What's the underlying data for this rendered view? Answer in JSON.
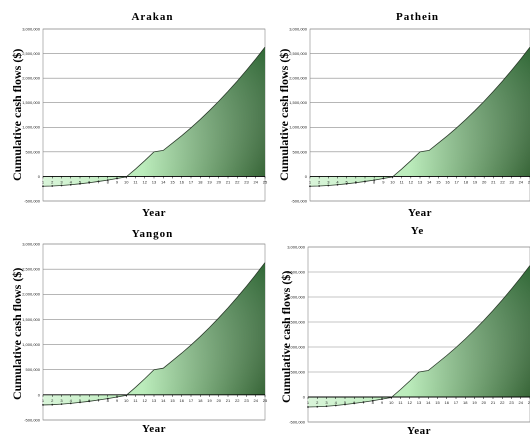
{
  "chart_data": [
    {
      "type": "area",
      "title": "Arakan",
      "xlabel": "Year",
      "ylabel": "Cumulative cash flows ($)",
      "yticks": [
        "-500,000",
        "0",
        "500,000",
        "1,000,000",
        "1,500,000",
        "2,000,000",
        "2,500,000",
        "3,000,000"
      ],
      "ylim": [
        -500000,
        3000000
      ],
      "x": [
        1,
        2,
        3,
        4,
        5,
        6,
        7,
        8,
        9,
        10,
        11,
        12,
        13,
        14,
        15,
        16,
        17,
        18,
        19,
        20,
        21,
        22,
        23,
        24,
        25
      ],
      "values": [
        -200000,
        -195000,
        -185000,
        -170000,
        -150000,
        -128000,
        -102000,
        -75000,
        -42000,
        -10000,
        150000,
        320000,
        500000,
        530000,
        680000,
        830000,
        990000,
        1160000,
        1340000,
        1530000,
        1730000,
        1940000,
        2160000,
        2390000,
        2630000
      ],
      "grid": true
    },
    {
      "type": "area",
      "title": "Pathein",
      "xlabel": "Year",
      "ylabel": "Cumulative cash flows ($)",
      "yticks": [
        "-500,000",
        "0",
        "500,000",
        "1,000,000",
        "1,500,000",
        "2,000,000",
        "2,500,000",
        "3,000,000"
      ],
      "ylim": [
        -500000,
        3000000
      ],
      "x": [
        1,
        2,
        3,
        4,
        5,
        6,
        7,
        8,
        9,
        10,
        11,
        12,
        13,
        14,
        15,
        16,
        17,
        18,
        19,
        20,
        21,
        22,
        23,
        24,
        25
      ],
      "values": [
        -200000,
        -195000,
        -185000,
        -170000,
        -150000,
        -128000,
        -102000,
        -75000,
        -42000,
        -10000,
        150000,
        320000,
        500000,
        530000,
        680000,
        830000,
        990000,
        1160000,
        1340000,
        1530000,
        1730000,
        1940000,
        2160000,
        2390000,
        2630000
      ],
      "grid": true
    },
    {
      "type": "area",
      "title": "Yangon",
      "xlabel": "Year",
      "ylabel": "Cumulative cash flows ($)",
      "yticks": [
        "-500,000",
        "0",
        "500,000",
        "1,000,000",
        "1,500,000",
        "2,000,000",
        "2,500,000",
        "3,000,000"
      ],
      "ylim": [
        -500000,
        3000000
      ],
      "x": [
        1,
        2,
        3,
        4,
        5,
        6,
        7,
        8,
        9,
        10,
        11,
        12,
        13,
        14,
        15,
        16,
        17,
        18,
        19,
        20,
        21,
        22,
        23,
        24,
        25
      ],
      "values": [
        -200000,
        -195000,
        -185000,
        -170000,
        -150000,
        -128000,
        -102000,
        -75000,
        -42000,
        -10000,
        150000,
        320000,
        500000,
        530000,
        680000,
        830000,
        990000,
        1160000,
        1340000,
        1530000,
        1730000,
        1940000,
        2160000,
        2390000,
        2630000
      ],
      "grid": true
    },
    {
      "type": "area",
      "title": "Ye",
      "xlabel": "Year",
      "ylabel": "Cumulative cash flows ($)",
      "yticks": [
        "-500,000",
        "0",
        "500,000",
        "1,000,000",
        "1,500,000",
        "2,000,000",
        "2,500,000",
        "3,000,000"
      ],
      "ylim": [
        -500000,
        3000000
      ],
      "x": [
        1,
        2,
        3,
        4,
        5,
        6,
        7,
        8,
        9,
        10,
        11,
        12,
        13,
        14,
        15,
        16,
        17,
        18,
        19,
        20,
        21,
        22,
        23,
        24,
        25
      ],
      "values": [
        -200000,
        -195000,
        -185000,
        -170000,
        -150000,
        -128000,
        -102000,
        -75000,
        -42000,
        -10000,
        150000,
        320000,
        500000,
        530000,
        680000,
        830000,
        990000,
        1160000,
        1340000,
        1530000,
        1730000,
        1940000,
        2160000,
        2390000,
        2630000
      ],
      "grid": true
    }
  ]
}
